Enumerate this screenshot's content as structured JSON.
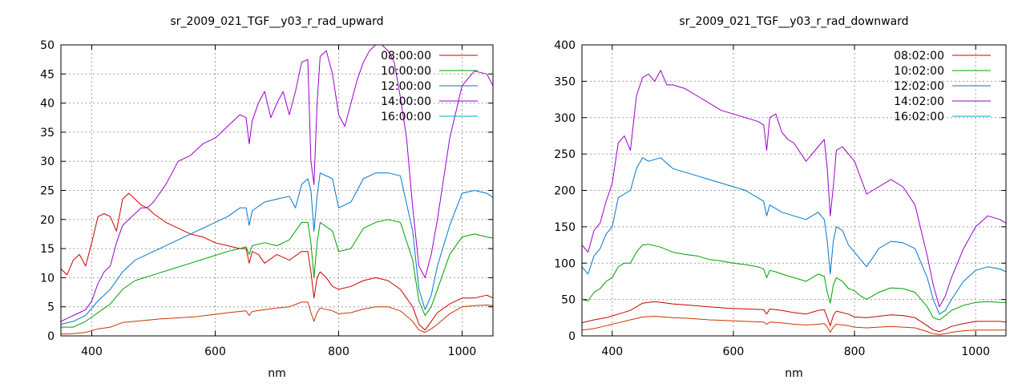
{
  "chart_data": [
    {
      "type": "line",
      "title": "sr_2009_021_TGF__y03_r_rad_upward",
      "xlabel": "nm",
      "ylabel": "",
      "xlim": [
        350,
        1050
      ],
      "ylim": [
        0,
        50
      ],
      "xticks": [
        400,
        600,
        800,
        1000
      ],
      "yticks": [
        0,
        5,
        10,
        15,
        20,
        25,
        30,
        35,
        40,
        45,
        50
      ],
      "grid": true,
      "legend_position": "top-right",
      "series": [
        {
          "name": "08:00:00",
          "color": "#cc0000",
          "x": [
            350,
            360,
            370,
            380,
            390,
            400,
            410,
            420,
            430,
            440,
            450,
            460,
            470,
            480,
            490,
            500,
            520,
            540,
            560,
            580,
            600,
            620,
            640,
            650,
            655,
            660,
            670,
            680,
            700,
            720,
            740,
            750,
            755,
            760,
            765,
            770,
            780,
            790,
            800,
            820,
            840,
            860,
            880,
            900,
            920,
            930,
            940,
            950,
            960,
            980,
            1000,
            1020,
            1040,
            1050
          ],
          "y": [
            11.5,
            10.5,
            13,
            14,
            12,
            16,
            20.5,
            21,
            20.5,
            18,
            23.5,
            24.5,
            23.5,
            22.5,
            22,
            21,
            19.5,
            18.5,
            17.5,
            17,
            16,
            15.5,
            15,
            15,
            12.5,
            14.5,
            14,
            12.5,
            14,
            13,
            14.5,
            14.5,
            11,
            6.5,
            10,
            11,
            10,
            8.5,
            8,
            8.5,
            9.5,
            10,
            9.5,
            8,
            5,
            2,
            1,
            2.5,
            4,
            5.5,
            6.5,
            6.5,
            7,
            6.5
          ]
        },
        {
          "name": "",
          "color": "#cc3300",
          "x": [
            350,
            370,
            390,
            410,
            430,
            450,
            480,
            510,
            540,
            570,
            600,
            630,
            650,
            655,
            660,
            680,
            700,
            720,
            740,
            750,
            755,
            760,
            765,
            770,
            790,
            800,
            820,
            840,
            860,
            880,
            900,
            920,
            930,
            940,
            950,
            960,
            980,
            1000,
            1020,
            1040,
            1050
          ],
          "y": [
            0.3,
            0.4,
            0.6,
            1.2,
            1.5,
            2.3,
            2.6,
            2.9,
            3.1,
            3.3,
            3.7,
            4.1,
            4.3,
            3.5,
            4.2,
            4.5,
            4.8,
            5,
            5.8,
            5.8,
            4,
            2.5,
            4,
            4.8,
            4.3,
            3.8,
            4,
            4.6,
            5,
            5,
            4.3,
            2.5,
            1,
            0.6,
            1.2,
            2,
            3.8,
            5,
            5.2,
            5.3,
            5.2
          ]
        },
        {
          "name": "10:00:00",
          "color": "#00a000",
          "x": [
            350,
            370,
            390,
            410,
            430,
            450,
            470,
            500,
            530,
            560,
            590,
            620,
            640,
            650,
            655,
            660,
            680,
            700,
            720,
            740,
            750,
            755,
            760,
            765,
            770,
            790,
            800,
            820,
            840,
            860,
            880,
            900,
            920,
            930,
            940,
            950,
            960,
            980,
            1000,
            1020,
            1040,
            1050
          ],
          "y": [
            1.5,
            1.5,
            2.5,
            4,
            5.5,
            8,
            9.5,
            10.5,
            11.5,
            12.5,
            13.5,
            14.5,
            15,
            15.3,
            14,
            15.5,
            16,
            15.5,
            16.5,
            19.5,
            19.5,
            16,
            10,
            16,
            19.5,
            18,
            14.5,
            15,
            18.5,
            19.5,
            20,
            19.5,
            13,
            6,
            3.5,
            5,
            8,
            14,
            17,
            17.5,
            17,
            16.8
          ]
        },
        {
          "name": "12:00:00",
          "color": "#0077cc",
          "x": [
            350,
            370,
            390,
            410,
            430,
            450,
            470,
            500,
            530,
            560,
            590,
            620,
            640,
            650,
            655,
            660,
            680,
            700,
            720,
            730,
            740,
            750,
            755,
            760,
            765,
            770,
            790,
            800,
            820,
            840,
            860,
            880,
            900,
            920,
            930,
            940,
            950,
            960,
            980,
            1000,
            1020,
            1040,
            1050
          ],
          "y": [
            2,
            2.5,
            3.5,
            6,
            8,
            11,
            13,
            14.5,
            16,
            17.5,
            19,
            20.5,
            22,
            22,
            19,
            21.5,
            23,
            23.5,
            24,
            22,
            26,
            27,
            25,
            18,
            24,
            28,
            27,
            22,
            23,
            27,
            28,
            28,
            27.5,
            18,
            8,
            4.5,
            7,
            12,
            19,
            24.5,
            25,
            24.5,
            23.8
          ]
        },
        {
          "name": "14:00:00",
          "color": "#9900cc",
          "x": [
            350,
            360,
            370,
            380,
            390,
            400,
            410,
            420,
            430,
            440,
            450,
            460,
            470,
            480,
            490,
            500,
            520,
            540,
            560,
            580,
            600,
            620,
            640,
            650,
            655,
            660,
            670,
            680,
            690,
            700,
            710,
            720,
            730,
            740,
            750,
            755,
            760,
            765,
            770,
            780,
            790,
            800,
            810,
            820,
            830,
            840,
            850,
            860,
            870,
            880,
            890,
            900,
            910,
            920,
            930,
            940,
            950,
            960,
            980,
            1000,
            1020,
            1040,
            1050
          ],
          "y": [
            2.5,
            3,
            3.5,
            4,
            4.5,
            6,
            9,
            11,
            12,
            16,
            19,
            20,
            21,
            22,
            22,
            23,
            26,
            30,
            31,
            33,
            34,
            36,
            38,
            37.5,
            33,
            37,
            40,
            42,
            37.5,
            40,
            42,
            38,
            42,
            47,
            47.5,
            30,
            26,
            40,
            48,
            49,
            45,
            38,
            36,
            40,
            44,
            47,
            49,
            50,
            50,
            49,
            47,
            41,
            34,
            22,
            12,
            10,
            14,
            20,
            34,
            43,
            45.5,
            45,
            43
          ]
        },
        {
          "name": "16:00:00",
          "color": "#00aacc",
          "x": [],
          "y": []
        }
      ]
    },
    {
      "type": "line",
      "title": "sr_2009_021_TGF__y03_r_rad_downward",
      "xlabel": "nm",
      "ylabel": "",
      "xlim": [
        350,
        1050
      ],
      "ylim": [
        0,
        400
      ],
      "xticks": [
        400,
        600,
        800,
        1000
      ],
      "yticks": [
        0,
        50,
        100,
        150,
        200,
        250,
        300,
        350,
        400
      ],
      "grid": true,
      "legend_position": "top-right",
      "series": [
        {
          "name": "08:02:00",
          "color": "#cc0000",
          "x": [
            350,
            370,
            390,
            410,
            430,
            450,
            470,
            500,
            530,
            560,
            590,
            620,
            650,
            655,
            660,
            680,
            700,
            720,
            740,
            750,
            755,
            760,
            765,
            770,
            790,
            800,
            820,
            840,
            860,
            880,
            900,
            920,
            930,
            940,
            950,
            960,
            980,
            1000,
            1020,
            1040,
            1050
          ],
          "y": [
            18,
            22,
            25,
            30,
            35,
            45,
            47,
            44,
            42,
            40,
            38,
            37,
            36,
            30,
            37,
            35,
            32,
            30,
            35,
            36,
            25,
            14,
            28,
            34,
            30,
            26,
            25,
            27,
            29,
            28,
            25,
            14,
            8,
            6,
            9,
            13,
            17,
            20,
            20,
            20,
            19
          ]
        },
        {
          "name": "",
          "color": "#cc3300",
          "x": [
            350,
            370,
            390,
            410,
            430,
            450,
            470,
            500,
            530,
            560,
            590,
            620,
            650,
            655,
            660,
            680,
            700,
            720,
            740,
            750,
            755,
            760,
            765,
            770,
            790,
            800,
            820,
            840,
            860,
            880,
            900,
            920,
            930,
            940,
            950,
            960,
            980,
            1000,
            1020,
            1040,
            1050
          ],
          "y": [
            8,
            10,
            14,
            18,
            22,
            26,
            27,
            25,
            24,
            22,
            21,
            20,
            19,
            16,
            19,
            18,
            16,
            15,
            16,
            17,
            12,
            5,
            12,
            16,
            14,
            12,
            11,
            12,
            13,
            12,
            11,
            6,
            3,
            2,
            3,
            5,
            7,
            8,
            8,
            8,
            8
          ]
        },
        {
          "name": "10:02:00",
          "color": "#00a000",
          "x": [
            350,
            360,
            370,
            380,
            390,
            400,
            410,
            420,
            430,
            440,
            450,
            460,
            480,
            500,
            520,
            540,
            560,
            580,
            600,
            620,
            640,
            650,
            655,
            660,
            670,
            680,
            700,
            720,
            740,
            750,
            755,
            760,
            765,
            770,
            780,
            790,
            800,
            810,
            820,
            840,
            860,
            880,
            900,
            920,
            930,
            940,
            950,
            960,
            980,
            1000,
            1020,
            1040,
            1050
          ],
          "y": [
            50,
            48,
            60,
            65,
            75,
            80,
            95,
            100,
            100,
            115,
            125,
            126,
            122,
            115,
            112,
            110,
            105,
            103,
            100,
            98,
            95,
            92,
            80,
            90,
            88,
            85,
            80,
            75,
            85,
            82,
            60,
            45,
            70,
            80,
            75,
            65,
            62,
            55,
            50,
            60,
            66,
            65,
            60,
            40,
            25,
            22,
            28,
            35,
            42,
            46,
            47,
            46,
            46
          ]
        },
        {
          "name": "12:02:00",
          "color": "#0077cc",
          "x": [
            350,
            360,
            370,
            380,
            390,
            400,
            410,
            420,
            430,
            440,
            450,
            460,
            480,
            500,
            520,
            540,
            560,
            580,
            600,
            620,
            640,
            650,
            655,
            660,
            670,
            680,
            700,
            720,
            740,
            750,
            755,
            760,
            765,
            770,
            780,
            790,
            800,
            810,
            820,
            840,
            860,
            880,
            900,
            920,
            930,
            940,
            950,
            960,
            980,
            1000,
            1020,
            1040,
            1050
          ],
          "y": [
            95,
            85,
            110,
            120,
            140,
            150,
            190,
            195,
            200,
            230,
            245,
            240,
            245,
            230,
            225,
            220,
            215,
            210,
            205,
            200,
            190,
            185,
            165,
            180,
            175,
            170,
            165,
            160,
            170,
            160,
            130,
            85,
            130,
            150,
            145,
            125,
            115,
            105,
            95,
            120,
            130,
            128,
            120,
            80,
            50,
            30,
            35,
            50,
            75,
            90,
            95,
            92,
            88
          ]
        },
        {
          "name": "14:02:00",
          "color": "#9900cc",
          "x": [
            350,
            360,
            370,
            380,
            390,
            400,
            410,
            420,
            430,
            440,
            450,
            460,
            470,
            480,
            490,
            500,
            520,
            540,
            560,
            580,
            600,
            620,
            640,
            650,
            655,
            660,
            670,
            680,
            690,
            700,
            720,
            740,
            750,
            755,
            760,
            765,
            770,
            780,
            790,
            800,
            820,
            840,
            860,
            880,
            900,
            920,
            930,
            940,
            950,
            960,
            980,
            1000,
            1020,
            1040,
            1050
          ],
          "y": [
            125,
            115,
            145,
            155,
            185,
            210,
            265,
            275,
            255,
            330,
            355,
            360,
            350,
            365,
            345,
            345,
            340,
            330,
            320,
            310,
            305,
            300,
            295,
            290,
            255,
            300,
            305,
            280,
            270,
            265,
            240,
            260,
            270,
            230,
            165,
            205,
            255,
            260,
            250,
            240,
            195,
            205,
            215,
            205,
            180,
            110,
            70,
            40,
            55,
            80,
            120,
            150,
            165,
            160,
            155
          ]
        },
        {
          "name": "16:02:00",
          "color": "#00aacc",
          "x": [],
          "y": []
        }
      ]
    }
  ]
}
